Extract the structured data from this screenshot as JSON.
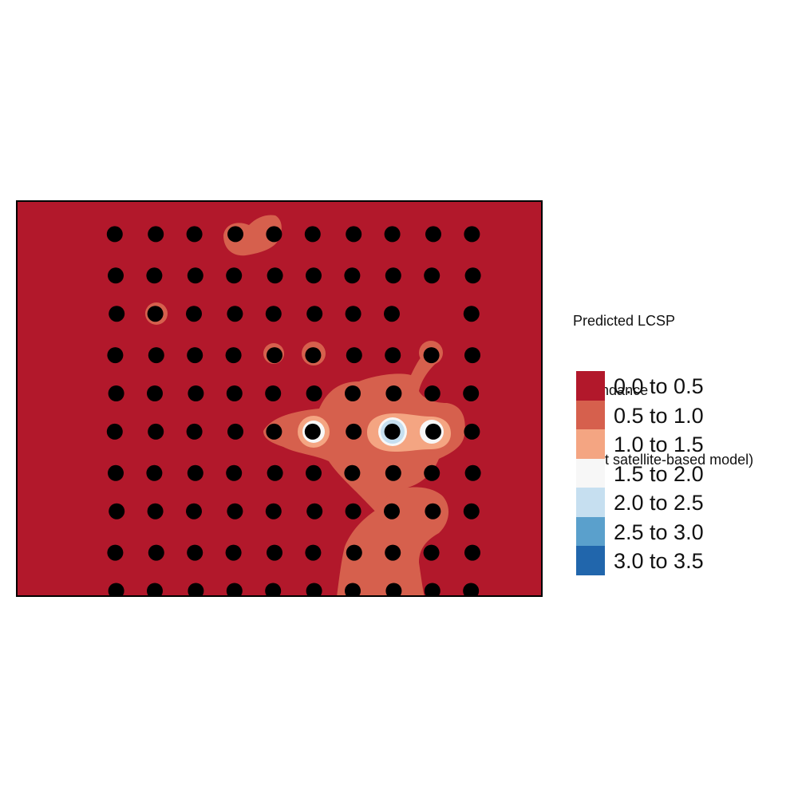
{
  "legend": {
    "title_lines": [
      "Predicted LCSP",
      " abundance",
      " (best satellite-based model)"
    ],
    "classes": [
      {
        "label": "0.0 to 0.5",
        "color": "#b2182b"
      },
      {
        "label": "0.5 to 1.0",
        "color": "#d6604d"
      },
      {
        "label": "1.0 to 1.5",
        "color": "#f4a582"
      },
      {
        "label": "1.5 to 2.0",
        "color": "#f7f7f7"
      },
      {
        "label": "2.0 to 2.5",
        "color": "#c6dff0"
      },
      {
        "label": "2.5 to 3.0",
        "color": "#5aa0cc"
      },
      {
        "label": "3.0 to 3.5",
        "color": "#2166ac"
      }
    ]
  },
  "map_data": {
    "type": "raster-with-points",
    "background_class": "0.0 to 0.5",
    "survey_points": {
      "rows": 10,
      "cols": 10,
      "missing": [
        [
          2,
          8
        ]
      ],
      "color": "#000000"
    },
    "patches": [
      {
        "class": "0.5 to 1.0",
        "note": "central-east plume"
      },
      {
        "class": "0.5 to 1.0",
        "note": "southern plume"
      },
      {
        "class": "0.5 to 1.0",
        "note": "north patch"
      },
      {
        "class": "1.0 to 1.5",
        "note": "hotspot ring"
      },
      {
        "class": "1.5 to 2.0",
        "note": "hotspot core"
      },
      {
        "class": "2.0 to 2.5",
        "note": "hotspot peak"
      }
    ]
  }
}
